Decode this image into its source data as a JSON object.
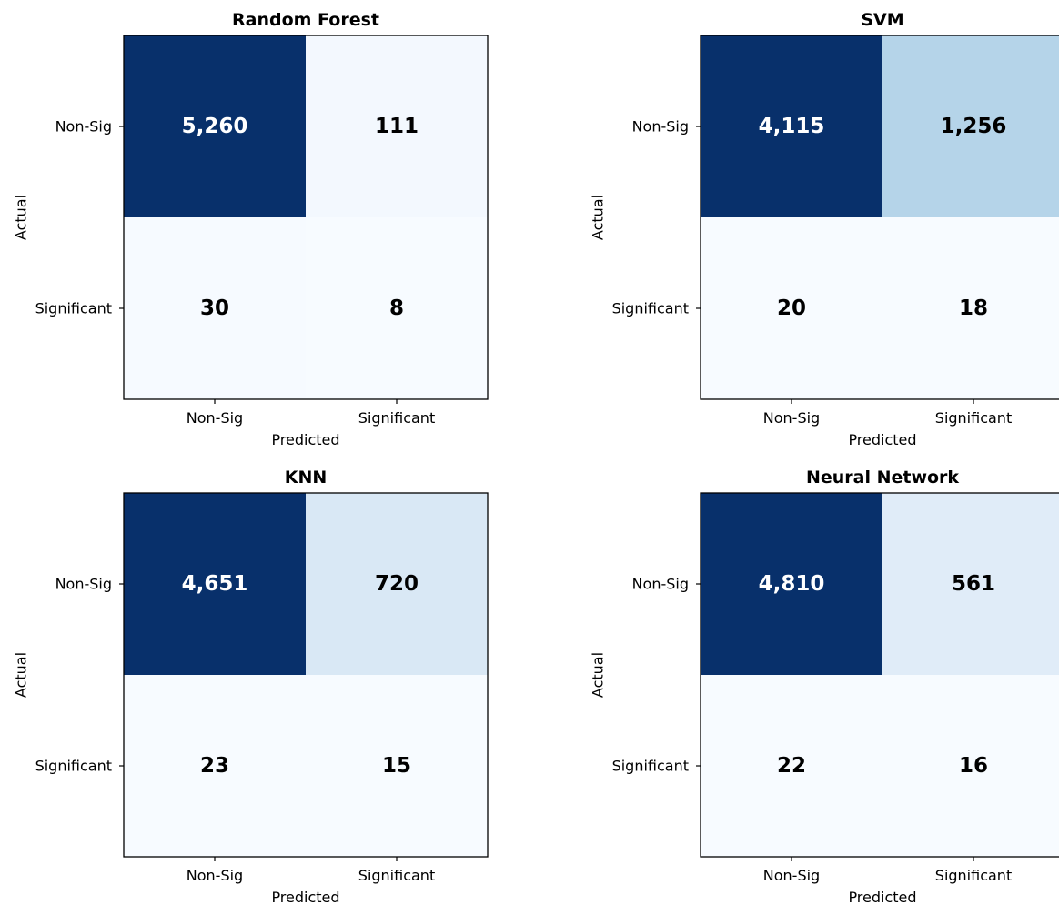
{
  "chart_data": [
    {
      "type": "heatmap",
      "title": "Random Forest",
      "xlabel": "Predicted",
      "ylabel": "Actual",
      "x_categories": [
        "Non-Sig",
        "Significant"
      ],
      "y_categories": [
        "Non-Sig",
        "Significant"
      ],
      "values": [
        [
          5260,
          111
        ],
        [
          30,
          8
        ]
      ],
      "value_labels": [
        [
          "5,260",
          "111"
        ],
        [
          "30",
          "8"
        ]
      ],
      "colormap": "Blues"
    },
    {
      "type": "heatmap",
      "title": "SVM",
      "xlabel": "Predicted",
      "ylabel": "Actual",
      "x_categories": [
        "Non-Sig",
        "Significant"
      ],
      "y_categories": [
        "Non-Sig",
        "Significant"
      ],
      "values": [
        [
          4115,
          1256
        ],
        [
          20,
          18
        ]
      ],
      "value_labels": [
        [
          "4,115",
          "1,256"
        ],
        [
          "20",
          "18"
        ]
      ],
      "colormap": "Blues"
    },
    {
      "type": "heatmap",
      "title": "KNN",
      "xlabel": "Predicted",
      "ylabel": "Actual",
      "x_categories": [
        "Non-Sig",
        "Significant"
      ],
      "y_categories": [
        "Non-Sig",
        "Significant"
      ],
      "values": [
        [
          4651,
          720
        ],
        [
          23,
          15
        ]
      ],
      "value_labels": [
        [
          "4,651",
          "720"
        ],
        [
          "23",
          "15"
        ]
      ],
      "colormap": "Blues"
    },
    {
      "type": "heatmap",
      "title": "Neural Network",
      "xlabel": "Predicted",
      "ylabel": "Actual",
      "x_categories": [
        "Non-Sig",
        "Significant"
      ],
      "y_categories": [
        "Non-Sig",
        "Significant"
      ],
      "values": [
        [
          4810,
          561
        ],
        [
          22,
          16
        ]
      ],
      "value_labels": [
        [
          "4,810",
          "561"
        ],
        [
          "22",
          "16"
        ]
      ],
      "colormap": "Blues"
    }
  ]
}
